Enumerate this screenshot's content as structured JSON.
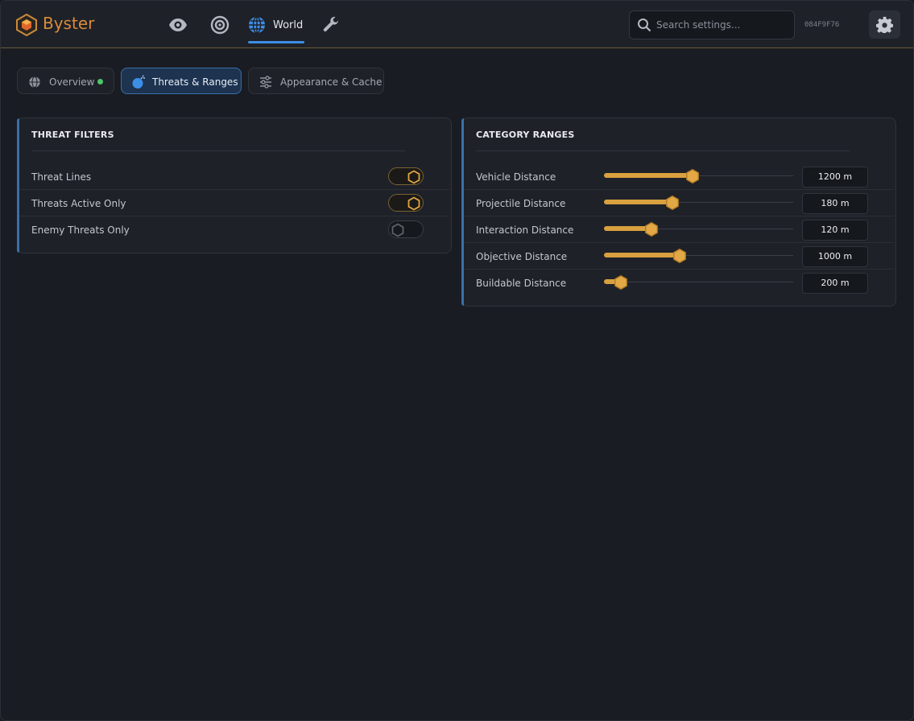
{
  "header": {
    "brand": "Byster",
    "active_nav": "World",
    "search_placeholder": "Search settings...",
    "id": "084F9F76"
  },
  "tabs": [
    "Overview",
    "Threats & Ranges",
    "Appearance & Cache"
  ],
  "threat_filters": {
    "title": "THREAT FILTERS",
    "rows": [
      {
        "label": "Threat Lines",
        "on": true
      },
      {
        "label": "Threats Active Only",
        "on": true
      },
      {
        "label": "Enemy Threats Only",
        "on": false
      }
    ]
  },
  "category_ranges": {
    "title": "CATEGORY RANGES",
    "rows": [
      {
        "label": "Vehicle Distance",
        "value": "1200 m"
      },
      {
        "label": "Projectile Distance",
        "value": "180 m"
      },
      {
        "label": "Interaction Distance",
        "value": "120 m"
      },
      {
        "label": "Objective Distance",
        "value": "1000 m"
      },
      {
        "label": "Buildable Distance",
        "value": "200 m"
      }
    ]
  }
}
